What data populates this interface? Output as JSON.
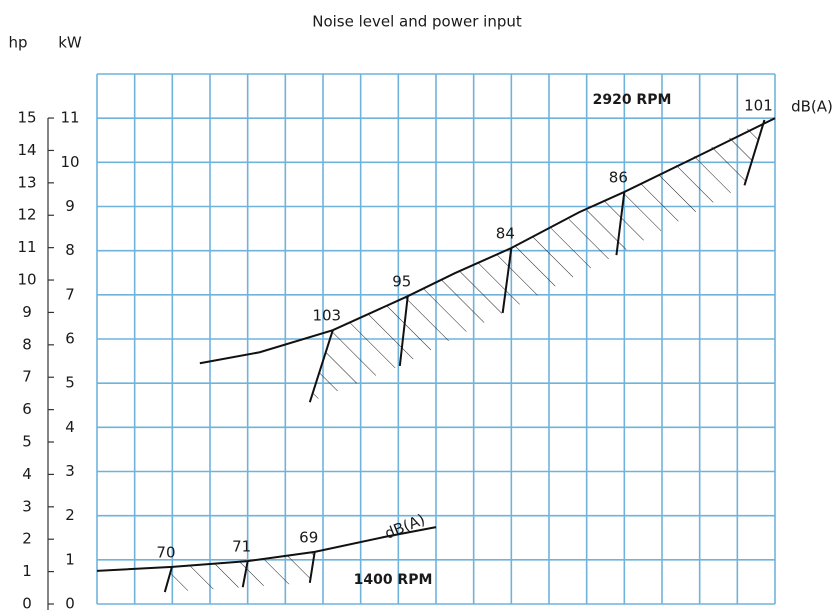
{
  "chart_data": {
    "type": "line",
    "title": "Noise level and power input",
    "y2label": "hp",
    "ylabel": "kW",
    "xlim": [
      0,
      18
    ],
    "xticks": [
      0,
      1,
      2,
      3,
      4,
      5,
      6,
      7,
      8,
      9,
      10,
      11,
      12,
      13,
      14,
      15,
      16,
      17,
      18
    ],
    "ylim": [
      0,
      12
    ],
    "yticks": [
      0,
      1,
      2,
      3,
      4,
      5,
      6,
      7,
      8,
      9,
      10,
      11
    ],
    "y2lim": [
      0,
      16.36
    ],
    "y2ticks": [
      0,
      1,
      2,
      3,
      4,
      5,
      6,
      7,
      8,
      9,
      10,
      11,
      12,
      13,
      14,
      15
    ],
    "grid": true,
    "color": "#6fb3dc",
    "series": [
      {
        "name": "2920 RPM",
        "color": "#111111",
        "unit": "dB(A)",
        "x": [
          2.73,
          4.32,
          6.26,
          8.25,
          9.5,
          11.0,
          12.8,
          14.0,
          16.0,
          18.0
        ],
        "values": [
          5.45,
          5.7,
          6.2,
          6.97,
          7.49,
          8.06,
          8.87,
          9.33,
          10.16,
          11.0
        ],
        "noise": [
          {
            "db": 103,
            "x": 6.26,
            "y": 6.2,
            "x_end": 5.65,
            "y_end": 4.57
          },
          {
            "db": 95,
            "x": 8.25,
            "y": 6.97,
            "x_end": 8.04,
            "y_end": 5.39
          },
          {
            "db": 84,
            "x": 11.0,
            "y": 8.06,
            "x_end": 10.77,
            "y_end": 6.59
          },
          {
            "db": 86,
            "x": 14.0,
            "y": 9.33,
            "x_end": 13.79,
            "y_end": 7.9
          },
          {
            "db": 101,
            "x": 17.72,
            "y": 10.96,
            "x_end": 17.19,
            "y_end": 9.48
          }
        ]
      },
      {
        "name": "1400 RPM",
        "color": "#111111",
        "unit": "dB(A)",
        "x": [
          0,
          2.0,
          4.0,
          5.78,
          7.64,
          9.0
        ],
        "values": [
          0.75,
          0.84,
          0.97,
          1.18,
          1.52,
          1.74
        ],
        "noise": [
          {
            "db": 70,
            "x": 1.99,
            "y": 0.84,
            "x_end": 1.8,
            "y_end": 0.27
          },
          {
            "db": 71,
            "x": 4.0,
            "y": 0.97,
            "x_end": 3.87,
            "y_end": 0.38
          },
          {
            "db": 69,
            "x": 5.78,
            "y": 1.18,
            "x_end": 5.65,
            "y_end": 0.48
          }
        ]
      }
    ]
  }
}
